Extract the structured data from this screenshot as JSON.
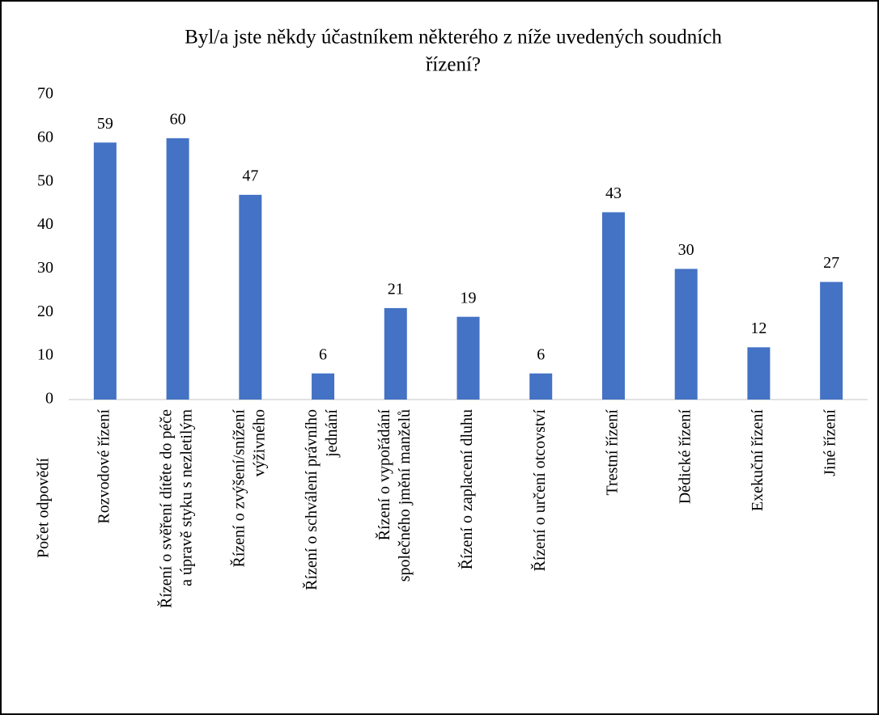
{
  "chart_data": {
    "type": "bar",
    "title": [
      "Byl/a jste někdy účastníkem některého z níže uvedených soudních",
      "řízení?"
    ],
    "y_label": "Počet odpovědí",
    "categories": [
      [
        "Rozvodové řízení"
      ],
      [
        "Řízení o svěření dítěte do péče",
        "a úpravě styku s nezletilým"
      ],
      [
        "Řízení o zvýšení/snížení",
        "výživného"
      ],
      [
        "Řízení o schválení právního",
        "jednání"
      ],
      [
        "Řízení o vypořádání",
        "společného jmění manželů"
      ],
      [
        "Řízení o zaplacení dluhu"
      ],
      [
        "Řízení o určení otcovství"
      ],
      [
        "Trestní řízení"
      ],
      [
        "Dědické řízení"
      ],
      [
        "Exekuční řízení"
      ],
      [
        "Jiné řízení"
      ]
    ],
    "values": [
      59,
      60,
      47,
      6,
      21,
      19,
      6,
      43,
      30,
      12,
      27
    ],
    "color": "#4472c4",
    "ylim": [
      0,
      70
    ],
    "yticks": [
      0,
      10,
      20,
      30,
      40,
      50,
      60,
      70
    ],
    "grid": false
  }
}
